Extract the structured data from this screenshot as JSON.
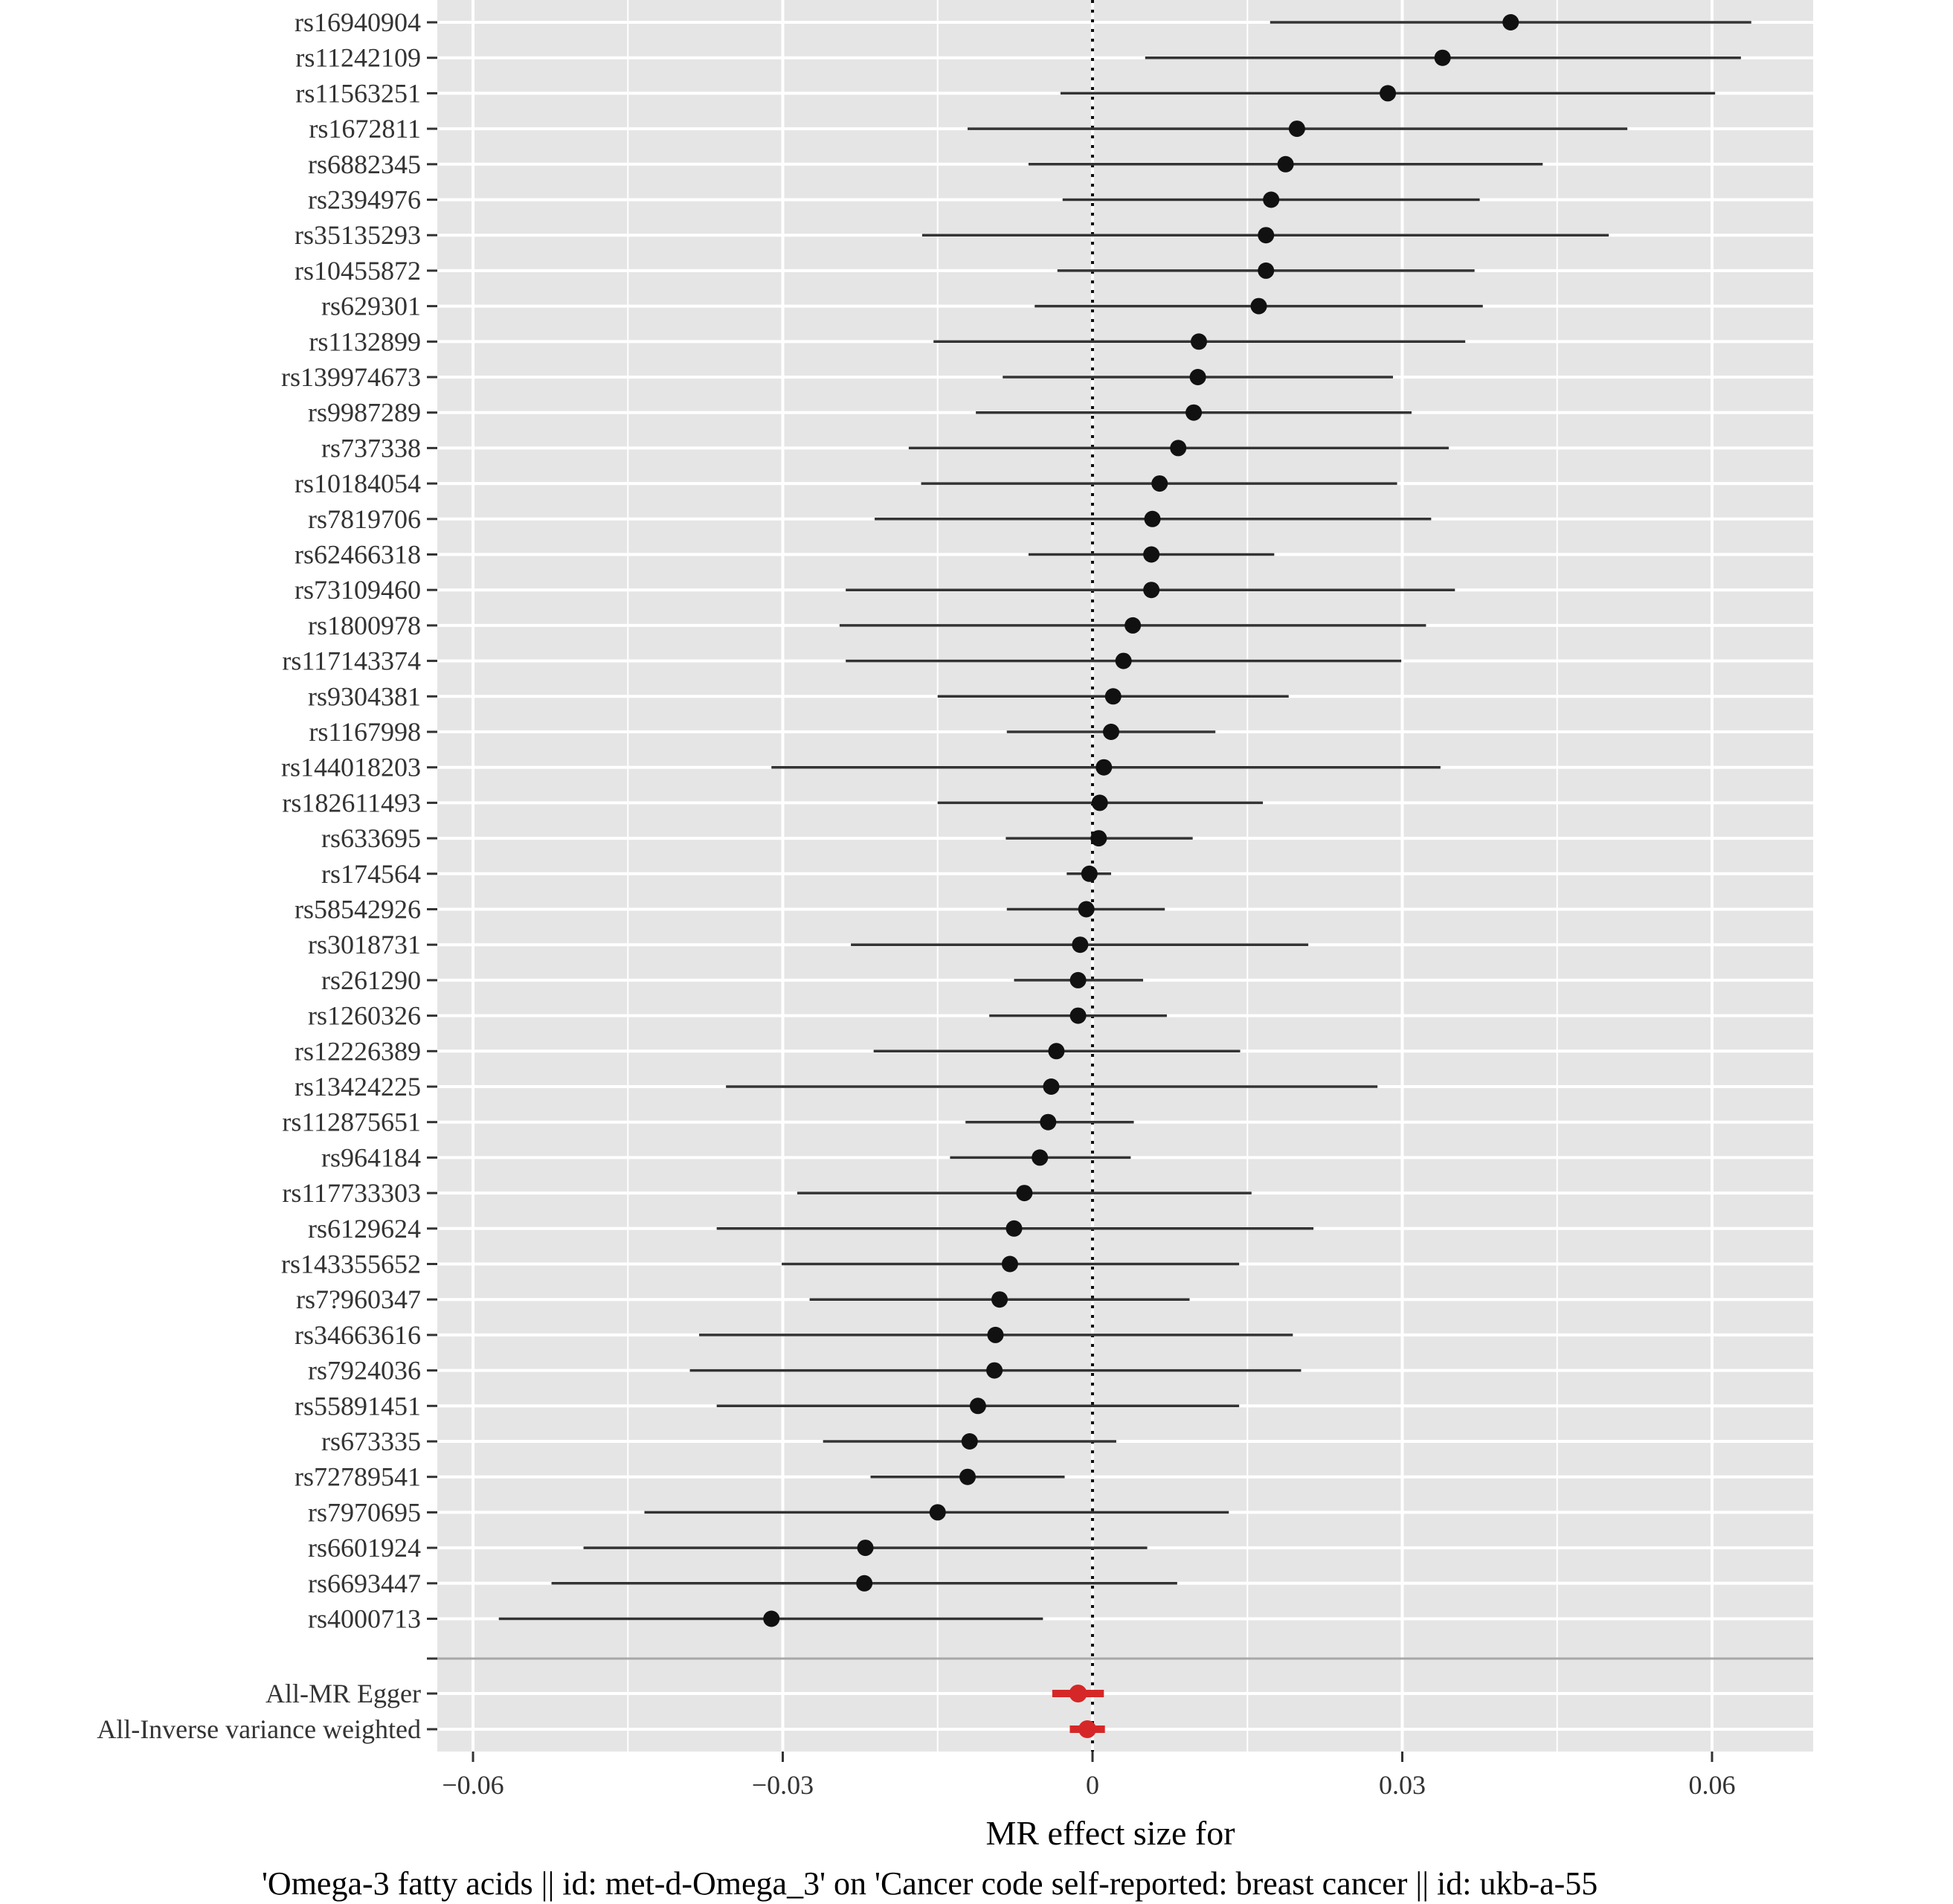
{
  "chart_data": {
    "type": "scatter",
    "subtype": "forest-plot",
    "xlabel": "MR effect size for",
    "xlabel_sub": "'Omega-3 fatty acids || id: met-d-Omega_3' on 'Cancer code self-reported: breast cancer || id: ukb-a-55",
    "xlim": [
      -0.064,
      0.07
    ],
    "xticks": [
      -0.06,
      -0.03,
      0,
      0.03,
      0.06
    ],
    "xtick_labels": [
      "−0.06",
      "−0.03",
      "0",
      "0.03",
      "0.06"
    ],
    "reference_line": 0,
    "grid": true,
    "colors": {
      "panel": "#e5e5e5",
      "grid": "#ffffff",
      "point": "#111111",
      "ci_line": "#333333",
      "summary": "#d62728",
      "separator": "#a8a8a8",
      "reference": "#111111"
    },
    "snps": [
      {
        "label": "rs16940904",
        "b": 0.0405,
        "lo": 0.0172,
        "hi": 0.0638
      },
      {
        "label": "rs11242109",
        "b": 0.0339,
        "lo": 0.0051,
        "hi": 0.0628
      },
      {
        "label": "rs11563251",
        "b": 0.0286,
        "lo": -0.0031,
        "hi": 0.0603
      },
      {
        "label": "rs1672811",
        "b": 0.0198,
        "lo": -0.0121,
        "hi": 0.0518
      },
      {
        "label": "rs6882345",
        "b": 0.0187,
        "lo": -0.0062,
        "hi": 0.0436
      },
      {
        "label": "rs2394976",
        "b": 0.0173,
        "lo": -0.0029,
        "hi": 0.0375
      },
      {
        "label": "rs35135293",
        "b": 0.0168,
        "lo": -0.0165,
        "hi": 0.05
      },
      {
        "label": "rs10455872",
        "b": 0.0168,
        "lo": -0.0034,
        "hi": 0.037
      },
      {
        "label": "rs629301",
        "b": 0.0161,
        "lo": -0.0056,
        "hi": 0.0378
      },
      {
        "label": "rs1132899",
        "b": 0.0103,
        "lo": -0.0154,
        "hi": 0.0361
      },
      {
        "label": "rs139974673",
        "b": 0.0102,
        "lo": -0.0087,
        "hi": 0.0291
      },
      {
        "label": "rs9987289",
        "b": 0.0098,
        "lo": -0.0113,
        "hi": 0.0309
      },
      {
        "label": "rs737338",
        "b": 0.0083,
        "lo": -0.0178,
        "hi": 0.0345
      },
      {
        "label": "rs10184054",
        "b": 0.0065,
        "lo": -0.0166,
        "hi": 0.0295
      },
      {
        "label": "rs7819706",
        "b": 0.0058,
        "lo": -0.0211,
        "hi": 0.0328
      },
      {
        "label": "rs62466318",
        "b": 0.0057,
        "lo": -0.0062,
        "hi": 0.0176
      },
      {
        "label": "rs73109460",
        "b": 0.0057,
        "lo": -0.0239,
        "hi": 0.0351
      },
      {
        "label": "rs1800978",
        "b": 0.0039,
        "lo": -0.0245,
        "hi": 0.0323
      },
      {
        "label": "rs117143374",
        "b": 0.003,
        "lo": -0.0239,
        "hi": 0.0299
      },
      {
        "label": "rs9304381",
        "b": 0.002,
        "lo": -0.015,
        "hi": 0.019
      },
      {
        "label": "rs1167998",
        "b": 0.0018,
        "lo": -0.0083,
        "hi": 0.0119
      },
      {
        "label": "rs144018203",
        "b": 0.0011,
        "lo": -0.0311,
        "hi": 0.0337
      },
      {
        "label": "rs182611493",
        "b": 0.0007,
        "lo": -0.015,
        "hi": 0.0165
      },
      {
        "label": "rs633695",
        "b": 0.0006,
        "lo": -0.0084,
        "hi": 0.0097
      },
      {
        "label": "rs174564",
        "b": -0.0003,
        "lo": -0.0025,
        "hi": 0.0018
      },
      {
        "label": "rs58542926",
        "b": -0.0006,
        "lo": -0.0083,
        "hi": 0.007
      },
      {
        "label": "rs3018731",
        "b": -0.0012,
        "lo": -0.0234,
        "hi": 0.0209
      },
      {
        "label": "rs261290",
        "b": -0.0014,
        "lo": -0.0076,
        "hi": 0.0049
      },
      {
        "label": "rs1260326",
        "b": -0.0014,
        "lo": -0.01,
        "hi": 0.0072
      },
      {
        "label": "rs12226389",
        "b": -0.0035,
        "lo": -0.0212,
        "hi": 0.0143
      },
      {
        "label": "rs13424225",
        "b": -0.004,
        "lo": -0.0355,
        "hi": 0.0276
      },
      {
        "label": "rs112875651",
        "b": -0.0043,
        "lo": -0.0123,
        "hi": 0.004
      },
      {
        "label": "rs964184",
        "b": -0.0051,
        "lo": -0.0138,
        "hi": 0.0037
      },
      {
        "label": "rs117733303",
        "b": -0.0066,
        "lo": -0.0286,
        "hi": 0.0154
      },
      {
        "label": "rs6129624",
        "b": -0.0076,
        "lo": -0.0364,
        "hi": 0.0214
      },
      {
        "label": "rs143355652",
        "b": -0.008,
        "lo": -0.0301,
        "hi": 0.0142
      },
      {
        "label": "rs7?960347",
        "b": -0.009,
        "lo": -0.0274,
        "hi": 0.0094
      },
      {
        "label": "rs34663616",
        "b": -0.0094,
        "lo": -0.0381,
        "hi": 0.0194
      },
      {
        "label": "rs7924036",
        "b": -0.0095,
        "lo": -0.039,
        "hi": 0.0202
      },
      {
        "label": "rs55891451",
        "b": -0.0111,
        "lo": -0.0364,
        "hi": 0.0142
      },
      {
        "label": "rs673335",
        "b": -0.0119,
        "lo": -0.0261,
        "hi": 0.0023
      },
      {
        "label": "rs72789541",
        "b": -0.0121,
        "lo": -0.0215,
        "hi": -0.0027
      },
      {
        "label": "rs7970695",
        "b": -0.015,
        "lo": -0.0434,
        "hi": 0.0132
      },
      {
        "label": "rs6601924",
        "b": -0.022,
        "lo": -0.0493,
        "hi": 0.0053
      },
      {
        "label": "rs6693447",
        "b": -0.0221,
        "lo": -0.0524,
        "hi": 0.0082
      },
      {
        "label": "rs4000713",
        "b": -0.0311,
        "lo": -0.0575,
        "hi": -0.0048
      }
    ],
    "summary": [
      {
        "label": "All-MR Egger",
        "b": -0.0014,
        "lo": -0.0039,
        "hi": 0.0011
      },
      {
        "label": "All-Inverse variance weighted",
        "b": -0.0005,
        "lo": -0.0022,
        "hi": 0.0012
      }
    ]
  }
}
